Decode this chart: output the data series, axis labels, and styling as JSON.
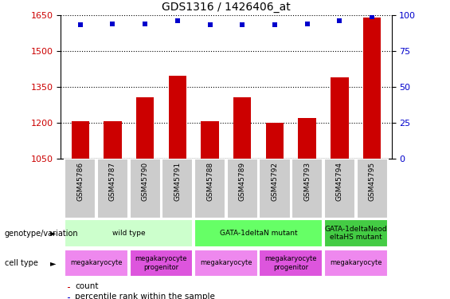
{
  "title": "GDS1316 / 1426406_at",
  "samples": [
    "GSM45786",
    "GSM45787",
    "GSM45790",
    "GSM45791",
    "GSM45788",
    "GSM45789",
    "GSM45792",
    "GSM45793",
    "GSM45794",
    "GSM45795"
  ],
  "bar_values": [
    1207,
    1207,
    1305,
    1395,
    1207,
    1305,
    1200,
    1220,
    1390,
    1640
  ],
  "percentile_values": [
    93,
    94,
    94,
    96,
    93,
    93,
    93,
    94,
    96,
    99
  ],
  "ylim_left": [
    1050,
    1650
  ],
  "ylim_right": [
    0,
    100
  ],
  "yticks_left": [
    1050,
    1200,
    1350,
    1500,
    1650
  ],
  "yticks_right": [
    0,
    25,
    50,
    75,
    100
  ],
  "bar_color": "#cc0000",
  "dot_color": "#0000cc",
  "background_color": "#ffffff",
  "plot_bg_color": "#ffffff",
  "grid_color": "#000000",
  "genotype_groups": [
    {
      "label": "wild type",
      "start": 0,
      "end": 4,
      "color": "#ccffcc"
    },
    {
      "label": "GATA-1deltaN mutant",
      "start": 4,
      "end": 8,
      "color": "#66ff66"
    },
    {
      "label": "GATA-1deltaNeod\neltaHS mutant",
      "start": 8,
      "end": 10,
      "color": "#44cc44"
    }
  ],
  "cell_type_groups": [
    {
      "label": "megakaryocyte",
      "start": 0,
      "end": 2,
      "color": "#ee88ee"
    },
    {
      "label": "megakaryocyte\nprogenitor",
      "start": 2,
      "end": 4,
      "color": "#dd55dd"
    },
    {
      "label": "megakaryocyte",
      "start": 4,
      "end": 6,
      "color": "#ee88ee"
    },
    {
      "label": "megakaryocyte\nprogenitor",
      "start": 6,
      "end": 8,
      "color": "#dd55dd"
    },
    {
      "label": "megakaryocyte",
      "start": 8,
      "end": 10,
      "color": "#ee88ee"
    }
  ],
  "genotype_label": "genotype/variation",
  "cell_type_label": "cell type",
  "legend_count_label": "count",
  "legend_percentile_label": "percentile rank within the sample",
  "title_fontsize": 10,
  "tick_fontsize": 8,
  "label_fontsize": 8,
  "xtick_bg_color": "#cccccc",
  "dot_size": 18
}
